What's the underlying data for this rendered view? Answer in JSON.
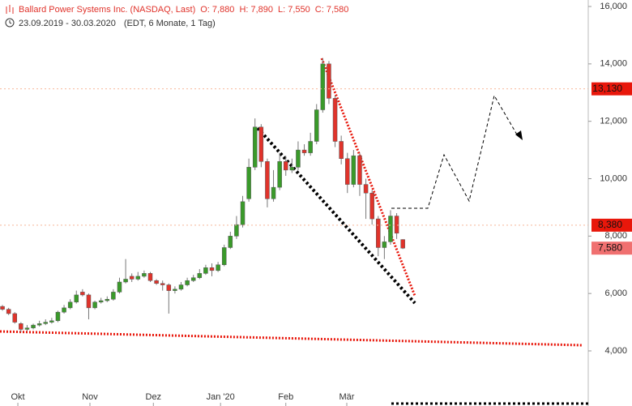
{
  "chart_data": {
    "type": "candlestick",
    "title": "Ballard Power Systems Inc. (NASDAQ, Last)",
    "ohlc_labels": [
      "O: 7,880",
      "H: 7,890",
      "L: 7,550",
      "C: 7,580"
    ],
    "subtitle": "23.09.2019 - 30.03.2020",
    "subtitle_note": "(EDT, 6 Monate, 1 Tag)",
    "up_color": "#3a9a2a",
    "down_color": "#e0332b",
    "open": [
      5550,
      5450,
      5300,
      4950,
      4750,
      4800,
      4900,
      4950,
      5000,
      5050,
      5350,
      5500,
      5700,
      6050,
      5950,
      5500,
      5700,
      5750,
      5800,
      6050,
      6400,
      6600,
      6500,
      6600,
      6700,
      6450,
      6350,
      6300,
      6100,
      6150,
      6300,
      6450,
      6550,
      6700,
      6900,
      6800,
      7000,
      7600,
      8000,
      8400,
      9300,
      10400,
      11800,
      10600,
      9300,
      9700,
      10600,
      10300,
      10400,
      11000,
      10900,
      11300,
      12400,
      14000,
      12800,
      11300,
      10700,
      9800,
      10800,
      9800,
      9500,
      8600,
      7600,
      7800,
      8700,
      7880
    ],
    "high": [
      5600,
      5500,
      5350,
      5000,
      4900,
      4950,
      5050,
      5100,
      5150,
      5400,
      5600,
      5800,
      6100,
      6150,
      6000,
      5750,
      5850,
      5900,
      6150,
      6550,
      7200,
      6700,
      6750,
      6800,
      6750,
      6500,
      6450,
      6350,
      6250,
      6400,
      6550,
      6650,
      6850,
      7000,
      7050,
      7100,
      7700,
      8150,
      8700,
      9400,
      10700,
      12100,
      11900,
      10700,
      10300,
      10900,
      10800,
      10700,
      11300,
      11200,
      11600,
      12600,
      14200,
      14100,
      12900,
      11500,
      10900,
      11000,
      10900,
      10000,
      9600,
      8700,
      8000,
      8900,
      8800,
      7890
    ],
    "low": [
      5400,
      5250,
      4950,
      4650,
      4700,
      4750,
      4850,
      4900,
      4950,
      5000,
      5300,
      5450,
      5650,
      5900,
      5100,
      5450,
      5650,
      5700,
      5750,
      6000,
      6350,
      6400,
      6450,
      6550,
      6400,
      6300,
      6100,
      5300,
      6000,
      6100,
      6250,
      6400,
      6500,
      6650,
      6600,
      6750,
      6950,
      7550,
      7900,
      8300,
      9200,
      10300,
      10400,
      9000,
      9200,
      9600,
      10100,
      10200,
      10300,
      10800,
      10800,
      11200,
      12300,
      12600,
      11100,
      10500,
      9500,
      9700,
      9400,
      8600,
      8400,
      7300,
      7200,
      7700,
      7900,
      7550
    ],
    "close": [
      5450,
      5300,
      5000,
      4750,
      4800,
      4900,
      4950,
      5000,
      5050,
      5350,
      5500,
      5700,
      5950,
      5950,
      5500,
      5700,
      5750,
      5800,
      6050,
      6400,
      6500,
      6500,
      6600,
      6700,
      6450,
      6350,
      6300,
      6100,
      6150,
      6300,
      6450,
      6550,
      6700,
      6900,
      6800,
      7000,
      7600,
      8000,
      8400,
      9200,
      10400,
      11800,
      10600,
      9300,
      9700,
      10600,
      10300,
      10400,
      11000,
      10900,
      11300,
      12400,
      14000,
      12800,
      11300,
      10700,
      9800,
      10800,
      9800,
      9500,
      8600,
      7600,
      7800,
      8700,
      8100,
      7580
    ],
    "xlim": [
      -0.4,
      95.1
    ],
    "xticks": [
      {
        "value": 2.5,
        "label": "Okt"
      },
      {
        "value": 14.2,
        "label": "Nov"
      },
      {
        "value": 24.5,
        "label": "Dez"
      },
      {
        "value": 35.4,
        "label": "Jan '20"
      },
      {
        "value": 46,
        "label": "Feb"
      },
      {
        "value": 55.9,
        "label": "Mär"
      }
    ],
    "ylim": [
      2080,
      16226
    ],
    "yticks": [
      {
        "value": 4000,
        "label": "4,000"
      },
      {
        "value": 6000,
        "label": "6,000"
      },
      {
        "value": 8000,
        "label": "8,000"
      },
      {
        "value": 10000,
        "label": "10,000"
      },
      {
        "value": 12000,
        "label": "12,000"
      },
      {
        "value": 14000,
        "label": "14,000"
      },
      {
        "value": 16000,
        "label": "16,000"
      }
    ],
    "price_tags": [
      {
        "value": 13130,
        "label": "13,130",
        "color": "#e8170b"
      },
      {
        "value": 8380,
        "label": "8,380",
        "color": "#e8170b"
      },
      {
        "value": 7580,
        "label": "7,580",
        "color": "#f07070"
      }
    ]
  }
}
